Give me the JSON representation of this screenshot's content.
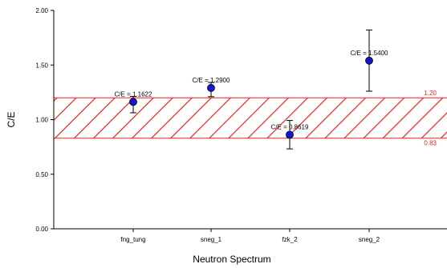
{
  "chart_data": {
    "type": "scatter",
    "xlabel": "Neutron Spectrum",
    "ylabel": "C/E",
    "ylim": [
      0,
      2
    ],
    "yticks": [
      "0.00",
      "0.50",
      "1.00",
      "1.50",
      "2.00"
    ],
    "categories": [
      "fng_tung",
      "sneg_1",
      "fzk_2",
      "sneg_2"
    ],
    "points": [
      {
        "category": "fng_tung",
        "value": 1.1622,
        "err_low": 0.1,
        "err_high": 0.05,
        "label": "C/E = 1.1622"
      },
      {
        "category": "sneg_1",
        "value": 1.29,
        "err_low": 0.08,
        "err_high": 0.05,
        "label": "C/E = 1.2900"
      },
      {
        "category": "fzk_2",
        "value": 0.8619,
        "err_low": 0.13,
        "err_high": 0.13,
        "label": "C/E = 0.8619"
      },
      {
        "category": "sneg_2",
        "value": 1.54,
        "err_low": 0.28,
        "err_high": 0.28,
        "label": "C/E = 1.5400"
      }
    ],
    "band": {
      "lower": 0.83,
      "upper": 1.2,
      "lower_label": "0.83",
      "upper_label": "1.20",
      "color": "#e8231f"
    },
    "marker_color": "#1414d2",
    "grid": false,
    "legend": "none"
  }
}
